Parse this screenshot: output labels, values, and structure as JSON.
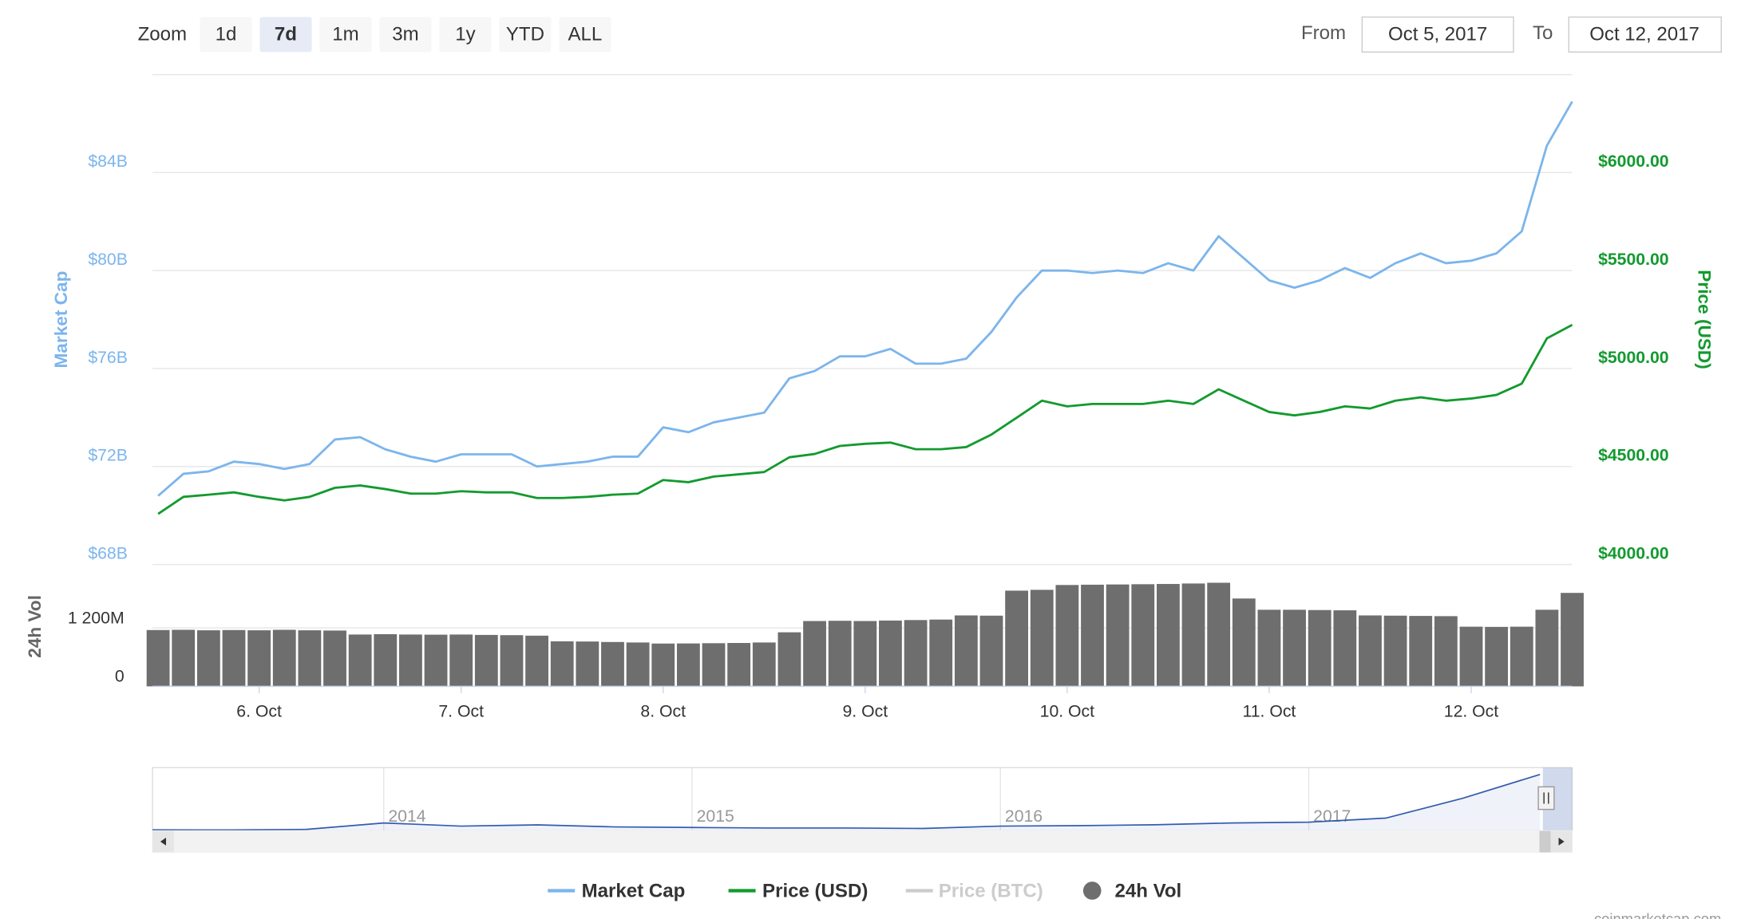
{
  "controls": {
    "zoom_label": "Zoom",
    "zoom_buttons": [
      "1d",
      "7d",
      "1m",
      "3m",
      "1y",
      "YTD",
      "ALL"
    ],
    "selected": "7d",
    "from_label": "From",
    "from": "Oct 5, 2017",
    "to_label": "To",
    "to": "Oct 12, 2017"
  },
  "credits": "coinmarketcap.com",
  "legend_inactive": [
    {
      "name": "Price (BTC)",
      "color": "#cccccc"
    }
  ],
  "chart_data": [
    {
      "type": "line",
      "ylabel": "Market Cap",
      "y2label": "Price (USD)",
      "grid": true,
      "ylim": [
        68,
        88
      ],
      "yticks": [
        {
          "value": 68,
          "label": "$68B"
        },
        {
          "value": 72,
          "label": "$72B"
        },
        {
          "value": 76,
          "label": "$76B"
        },
        {
          "value": 80,
          "label": "$80B"
        },
        {
          "value": 84,
          "label": "$84B"
        }
      ],
      "y2lim": [
        4000,
        6500
      ],
      "y2ticks": [
        {
          "value": 4000,
          "label": "$4000.00"
        },
        {
          "value": 4500,
          "label": "$4500.00"
        },
        {
          "value": 5000,
          "label": "$5000.00"
        },
        {
          "value": 5500,
          "label": "$5500.00"
        },
        {
          "value": 6000,
          "label": "$6000.00"
        }
      ],
      "series": [
        {
          "name": "Market Cap",
          "color": "#7cb5ec",
          "values": [
            70.8,
            71.7,
            71.8,
            72.2,
            72.1,
            71.9,
            72.1,
            73.1,
            73.2,
            72.7,
            72.4,
            72.2,
            72.5,
            72.5,
            72.5,
            72.0,
            72.1,
            72.2,
            72.4,
            72.4,
            73.6,
            73.4,
            73.8,
            74.0,
            74.2,
            75.6,
            75.9,
            76.5,
            76.5,
            76.8,
            76.2,
            76.2,
            76.4,
            77.5,
            78.9,
            80.0,
            80.0,
            79.9,
            80.0,
            79.9,
            80.3,
            80.0,
            81.4,
            80.5,
            79.6,
            79.3,
            79.6,
            80.1,
            79.7,
            80.3,
            80.7,
            80.3,
            80.4,
            80.7,
            81.6,
            85.1,
            86.9
          ]
        },
        {
          "name": "Price (USD)",
          "color": "#139a2f",
          "axis": "y2",
          "values": [
            4258,
            4345,
            4356,
            4368,
            4345,
            4327,
            4345,
            4391,
            4403,
            4385,
            4362,
            4362,
            4374,
            4368,
            4368,
            4339,
            4339,
            4345,
            4356,
            4362,
            4431,
            4420,
            4449,
            4460,
            4472,
            4547,
            4564,
            4605,
            4616,
            4622,
            4588,
            4588,
            4599,
            4663,
            4749,
            4836,
            4807,
            4819,
            4819,
            4819,
            4836,
            4819,
            4894,
            4836,
            4778,
            4761,
            4778,
            4807,
            4796,
            4836,
            4853,
            4836,
            4847,
            4865,
            4923,
            5154,
            5223
          ]
        }
      ]
    },
    {
      "type": "bar",
      "name": "24h Vol",
      "ylabel": "24h Vol",
      "color": "#6e6e6e",
      "ylim": [
        0,
        2500
      ],
      "yticks": [
        0,
        {
          "value": 1200,
          "label": "1 200M"
        }
      ],
      "categories": [
        null,
        null,
        null,
        null,
        "6. Oct",
        null,
        null,
        null,
        null,
        null,
        null,
        null,
        "7. Oct",
        null,
        null,
        null,
        null,
        null,
        null,
        null,
        "8. Oct",
        null,
        null,
        null,
        null,
        null,
        null,
        null,
        "9. Oct",
        null,
        null,
        null,
        null,
        null,
        null,
        null,
        "10. Oct",
        null,
        null,
        null,
        null,
        null,
        null,
        null,
        "11. Oct",
        null,
        null,
        null,
        null,
        null,
        null,
        null,
        "12. Oct",
        null,
        null,
        null,
        null
      ],
      "values": [
        1155,
        1160,
        1150,
        1155,
        1150,
        1160,
        1150,
        1145,
        1063,
        1070,
        1063,
        1060,
        1063,
        1055,
        1050,
        1040,
        924,
        920,
        910,
        900,
        878,
        880,
        885,
        890,
        900,
        1109,
        1340,
        1345,
        1340,
        1350,
        1360,
        1370,
        1455,
        1450,
        1963,
        1980,
        2079,
        2085,
        2090,
        2095,
        2100,
        2110,
        2125,
        1802,
        1571,
        1571,
        1565,
        1560,
        1455,
        1450,
        1445,
        1440,
        1224,
        1220,
        1224,
        1571,
        1917
      ]
    },
    {
      "type": "area",
      "color": "#335cad",
      "categories": [
        null,
        null,
        null,
        "2014",
        null,
        null,
        null,
        "2015",
        null,
        null,
        null,
        "2016",
        null,
        null,
        null,
        "2017",
        null,
        null,
        null
      ],
      "values": [
        1.3,
        1.1,
        1.8,
        10,
        6,
        7.5,
        5,
        4.3,
        3.5,
        3.5,
        3.0,
        6,
        6.6,
        7.7,
        10,
        11,
        16,
        41,
        71
      ]
    }
  ]
}
